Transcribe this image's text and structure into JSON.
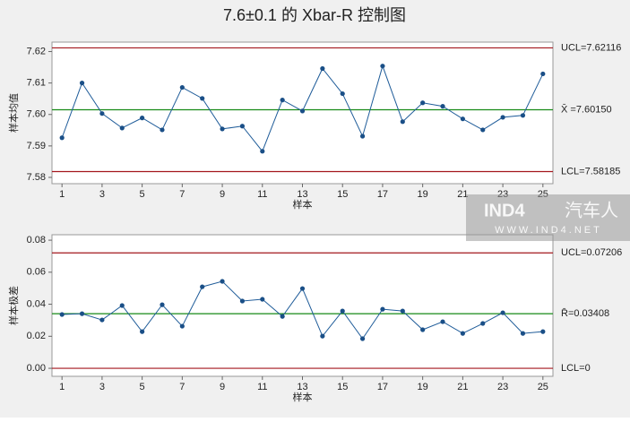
{
  "title": "7.6±0.1 的 Xbar-R 控制图",
  "watermark": {
    "logo": "IND4",
    "name": "汽车人",
    "url": "WWW.IND4.NET"
  },
  "chart_data": [
    {
      "type": "line",
      "ylabel": "样本均值",
      "xlabel": "样本",
      "x": [
        1,
        2,
        3,
        4,
        5,
        6,
        7,
        8,
        9,
        10,
        11,
        12,
        13,
        14,
        15,
        16,
        17,
        18,
        19,
        20,
        21,
        22,
        23,
        24,
        25
      ],
      "series": [
        {
          "color": "#1f5c99",
          "values": [
            7.5926,
            7.61,
            7.6003,
            7.5957,
            7.5989,
            7.5951,
            7.6086,
            7.6051,
            7.5954,
            7.5963,
            7.5883,
            7.6046,
            7.6011,
            7.6146,
            7.6066,
            7.5931,
            7.6154,
            7.5977,
            7.6037,
            7.6026,
            7.5986,
            7.5951,
            7.5991,
            7.5997,
            7.6129
          ]
        }
      ],
      "control_lines": [
        {
          "value": 7.62116,
          "label": "UCL=7.62116",
          "color": "#a3161d"
        },
        {
          "value": 7.6015,
          "label": "X̄ =7.60150",
          "color": "#178a17"
        },
        {
          "value": 7.58185,
          "label": "LCL=7.58185",
          "color": "#a3161d"
        }
      ],
      "xlim": [
        0.5,
        25.5
      ],
      "xticks": [
        1,
        3,
        5,
        7,
        9,
        11,
        13,
        15,
        17,
        19,
        21,
        23,
        25
      ],
      "ylim": [
        7.578,
        7.623
      ],
      "yticks": [
        7.58,
        7.59,
        {
          "value": 7.6,
          "label": "7.60"
        },
        7.61,
        7.62
      ]
    },
    {
      "type": "line",
      "ylabel": "样本极差",
      "xlabel": "样本",
      "x": [
        1,
        2,
        3,
        4,
        5,
        6,
        7,
        8,
        9,
        10,
        11,
        12,
        13,
        14,
        15,
        16,
        17,
        18,
        19,
        20,
        21,
        22,
        23,
        24,
        25
      ],
      "series": [
        {
          "color": "#1f5c99",
          "values": [
            0.0336,
            0.0341,
            0.0302,
            0.0392,
            0.0229,
            0.0397,
            0.0263,
            0.0509,
            0.0543,
            0.042,
            0.0431,
            0.0324,
            0.0498,
            0.0201,
            0.0358,
            0.0185,
            0.0369,
            0.0358,
            0.0241,
            0.0291,
            0.0218,
            0.028,
            0.0347,
            0.0218,
            0.0229
          ]
        }
      ],
      "control_lines": [
        {
          "value": 0.07206,
          "label": "UCL=0.07206",
          "color": "#a3161d"
        },
        {
          "value": 0.03408,
          "label": "R̄=0.03408",
          "color": "#178a17"
        },
        {
          "value": 0,
          "label": "LCL=0",
          "color": "#a3161d"
        }
      ],
      "xlim": [
        0.5,
        25.5
      ],
      "xticks": [
        1,
        3,
        5,
        7,
        9,
        11,
        13,
        15,
        17,
        19,
        21,
        23,
        25
      ],
      "ylim": [
        -0.005,
        0.0834
      ],
      "yticks": [
        {
          "value": 0,
          "label": "0.00"
        },
        0.02,
        0.04,
        0.06,
        0.08
      ]
    }
  ]
}
